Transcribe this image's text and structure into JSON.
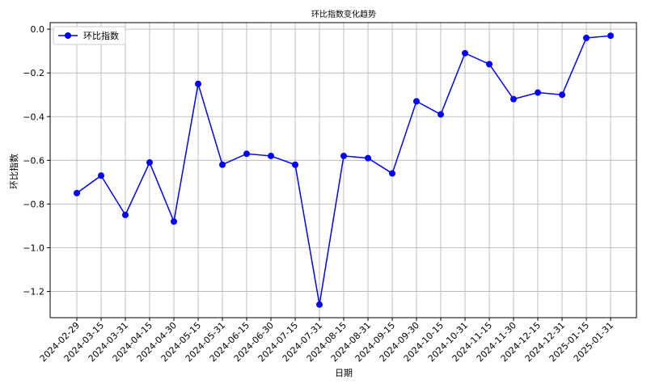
{
  "chart_data": {
    "type": "line",
    "title": "环比指数变化趋势",
    "xlabel": "日期",
    "ylabel": "环比指数",
    "categories": [
      "2024-02-29",
      "2024-03-15",
      "2024-03-31",
      "2024-04-15",
      "2024-04-30",
      "2024-05-15",
      "2024-05-31",
      "2024-06-15",
      "2024-06-30",
      "2024-07-15",
      "2024-07-31",
      "2024-08-15",
      "2024-08-31",
      "2024-09-15",
      "2024-09-30",
      "2024-10-15",
      "2024-10-31",
      "2024-11-15",
      "2024-11-30",
      "2024-12-15",
      "2024-12-31",
      "2025-01-15",
      "2025-01-31"
    ],
    "series": [
      {
        "name": "环比指数",
        "color": "#0000ff",
        "values": [
          -0.75,
          -0.67,
          -0.85,
          -0.61,
          -0.88,
          -0.25,
          -0.62,
          -0.57,
          -0.58,
          -0.62,
          -1.26,
          -0.58,
          -0.59,
          -0.66,
          -0.33,
          -0.39,
          -0.11,
          -0.16,
          -0.32,
          -0.29,
          -0.3,
          -0.04,
          -0.03
        ]
      }
    ],
    "ylim": [
      -1.32,
      0.03
    ],
    "yticks": [
      0.0,
      -0.2,
      -0.4,
      -0.6,
      -0.8,
      -1.0,
      -1.2
    ],
    "ytick_labels": [
      "0.0",
      "−0.2",
      "−0.4",
      "−0.6",
      "−0.8",
      "−1.0",
      "−1.2"
    ],
    "grid": true,
    "legend_position": "upper-left"
  }
}
